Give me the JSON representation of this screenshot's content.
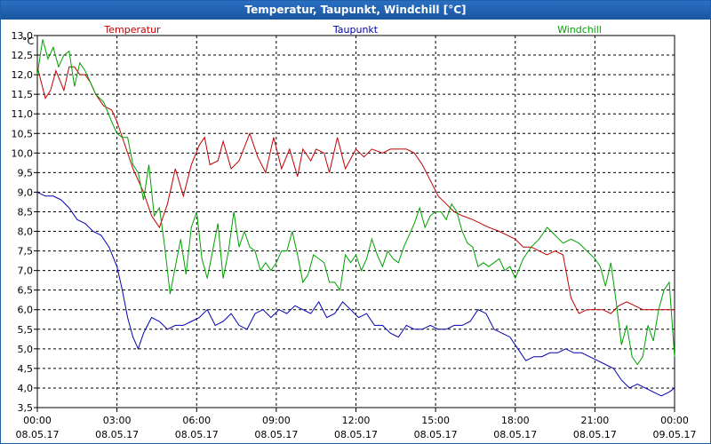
{
  "window": {
    "title": "Temperatur, Taupunkt, Windchill [°C]"
  },
  "chart_data": {
    "type": "line",
    "title": "Temperatur, Taupunkt, Windchill [°C]",
    "ylabel": "°C",
    "ylim": [
      3.5,
      13.0
    ],
    "yticks": [
      "13,0",
      "12,5",
      "12,0",
      "11,5",
      "11,0",
      "10,5",
      "10,0",
      "9,5",
      "9,0",
      "8,5",
      "8,0",
      "7,5",
      "7,0",
      "6,5",
      "6,0",
      "5,5",
      "5,0",
      "4,5",
      "4,0",
      "3,5"
    ],
    "xlim": [
      0,
      24
    ],
    "xticks": [
      {
        "time": "00:00",
        "date": "08.05.17"
      },
      {
        "time": "03:00",
        "date": "08.05.17"
      },
      {
        "time": "06:00",
        "date": "08.05.17"
      },
      {
        "time": "09:00",
        "date": "08.05.17"
      },
      {
        "time": "12:00",
        "date": "08.05.17"
      },
      {
        "time": "15:00",
        "date": "08.05.17"
      },
      {
        "time": "18:00",
        "date": "08.05.17"
      },
      {
        "time": "21:00",
        "date": "08.05.17"
      },
      {
        "time": "00:00",
        "date": "09.05.17"
      }
    ],
    "grid": true,
    "legend_position": "top",
    "series": [
      {
        "name": "Temperatur",
        "color": "#c00000",
        "x": [
          0,
          0.3,
          0.5,
          0.7,
          1.0,
          1.2,
          1.4,
          1.6,
          1.8,
          2.0,
          2.2,
          2.5,
          2.8,
          3.0,
          3.3,
          3.6,
          4.0,
          4.3,
          4.6,
          4.9,
          5.2,
          5.5,
          5.8,
          6.1,
          6.3,
          6.5,
          6.8,
          7.0,
          7.3,
          7.6,
          8.0,
          8.3,
          8.6,
          8.9,
          9.2,
          9.5,
          9.8,
          10.0,
          10.3,
          10.5,
          10.8,
          11.0,
          11.3,
          11.6,
          12.0,
          12.3,
          12.6,
          13.0,
          13.3,
          13.6,
          13.9,
          14.2,
          14.5,
          14.8,
          15.1,
          15.4,
          15.7,
          16.0,
          16.4,
          16.7,
          17.0,
          17.4,
          17.7,
          18.0,
          18.3,
          18.6,
          18.9,
          19.2,
          19.5,
          19.8,
          20.1,
          20.4,
          20.7,
          21.0,
          21.3,
          21.6,
          21.9,
          22.2,
          22.5,
          22.8,
          23.1,
          23.4,
          23.7,
          24.0
        ],
        "values": [
          12.2,
          11.4,
          11.6,
          12.1,
          11.6,
          12.2,
          12.2,
          12.0,
          12.0,
          11.8,
          11.5,
          11.2,
          11.1,
          10.8,
          10.2,
          9.6,
          9.0,
          8.4,
          8.1,
          8.7,
          9.6,
          8.9,
          9.7,
          10.2,
          10.4,
          9.7,
          9.8,
          10.3,
          9.6,
          9.8,
          10.5,
          9.9,
          9.5,
          10.4,
          9.6,
          10.1,
          9.4,
          10.1,
          9.8,
          10.1,
          10.0,
          9.5,
          10.4,
          9.6,
          10.1,
          9.9,
          10.1,
          10.0,
          10.1,
          10.1,
          10.1,
          10.0,
          9.7,
          9.3,
          8.9,
          8.7,
          8.5,
          8.4,
          8.3,
          8.2,
          8.1,
          8.0,
          7.9,
          7.8,
          7.6,
          7.6,
          7.5,
          7.4,
          7.5,
          7.4,
          6.3,
          5.9,
          6.0,
          6.0,
          6.0,
          5.9,
          6.1,
          6.2,
          6.1,
          6.0,
          6.0,
          6.0,
          6.0,
          6.0
        ]
      },
      {
        "name": "Taupunkt",
        "color": "#0000b0",
        "x": [
          0,
          0.3,
          0.6,
          0.9,
          1.2,
          1.5,
          1.8,
          2.1,
          2.4,
          2.7,
          3.0,
          3.2,
          3.4,
          3.6,
          3.8,
          4.0,
          4.3,
          4.6,
          4.9,
          5.2,
          5.5,
          5.8,
          6.1,
          6.4,
          6.7,
          7.0,
          7.3,
          7.6,
          7.9,
          8.2,
          8.5,
          8.8,
          9.1,
          9.4,
          9.7,
          10.0,
          10.3,
          10.6,
          10.9,
          11.2,
          11.5,
          11.8,
          12.1,
          12.4,
          12.7,
          13.0,
          13.3,
          13.6,
          13.9,
          14.2,
          14.5,
          14.8,
          15.1,
          15.4,
          15.7,
          16.0,
          16.3,
          16.6,
          16.9,
          17.2,
          17.5,
          17.8,
          18.1,
          18.4,
          18.7,
          19.0,
          19.3,
          19.6,
          19.9,
          20.2,
          20.5,
          20.8,
          21.1,
          21.4,
          21.7,
          22.0,
          22.3,
          22.6,
          22.9,
          23.2,
          23.5,
          23.8,
          24.0
        ],
        "values": [
          9.0,
          8.9,
          8.9,
          8.8,
          8.6,
          8.3,
          8.2,
          8.0,
          7.9,
          7.6,
          7.1,
          6.5,
          5.8,
          5.3,
          5.0,
          5.4,
          5.8,
          5.7,
          5.5,
          5.6,
          5.6,
          5.7,
          5.8,
          6.0,
          5.6,
          5.7,
          5.9,
          5.6,
          5.5,
          5.9,
          6.0,
          5.8,
          6.0,
          5.9,
          6.1,
          6.0,
          5.9,
          6.2,
          5.8,
          5.9,
          6.2,
          6.0,
          5.8,
          5.9,
          5.6,
          5.6,
          5.4,
          5.3,
          5.6,
          5.5,
          5.5,
          5.6,
          5.5,
          5.5,
          5.6,
          5.6,
          5.7,
          6.0,
          5.9,
          5.5,
          5.4,
          5.3,
          5.0,
          4.7,
          4.8,
          4.8,
          4.9,
          4.9,
          5.0,
          4.9,
          4.9,
          4.8,
          4.7,
          4.6,
          4.5,
          4.2,
          4.0,
          4.1,
          4.0,
          3.9,
          3.8,
          3.9,
          4.0
        ]
      },
      {
        "name": "Windchill",
        "color": "#00a000",
        "x": [
          0,
          0.2,
          0.4,
          0.6,
          0.8,
          1.0,
          1.2,
          1.4,
          1.6,
          1.8,
          2.0,
          2.2,
          2.5,
          2.8,
          3.0,
          3.2,
          3.4,
          3.6,
          3.8,
          4.0,
          4.2,
          4.4,
          4.6,
          4.8,
          5.0,
          5.2,
          5.4,
          5.6,
          5.8,
          6.0,
          6.2,
          6.4,
          6.6,
          6.8,
          7.0,
          7.2,
          7.4,
          7.6,
          7.8,
          8.0,
          8.2,
          8.4,
          8.6,
          8.8,
          9.0,
          9.2,
          9.4,
          9.6,
          9.8,
          10.0,
          10.2,
          10.4,
          10.6,
          10.8,
          11.0,
          11.2,
          11.4,
          11.6,
          11.8,
          12.0,
          12.2,
          12.4,
          12.6,
          12.8,
          13.0,
          13.2,
          13.4,
          13.6,
          13.8,
          14.0,
          14.2,
          14.4,
          14.6,
          14.8,
          15.0,
          15.2,
          15.4,
          15.6,
          15.8,
          16.0,
          16.2,
          16.4,
          16.6,
          16.8,
          17.0,
          17.2,
          17.4,
          17.6,
          17.8,
          18.0,
          18.3,
          18.6,
          18.9,
          19.2,
          19.5,
          19.8,
          20.1,
          20.4,
          20.7,
          21.0,
          21.2,
          21.4,
          21.6,
          21.8,
          22.0,
          22.2,
          22.4,
          22.6,
          22.8,
          23.0,
          23.2,
          23.4,
          23.6,
          23.8,
          24.0
        ],
        "values": [
          12.0,
          12.9,
          12.4,
          12.7,
          12.2,
          12.5,
          12.6,
          11.7,
          12.3,
          12.1,
          11.8,
          11.5,
          11.3,
          10.8,
          10.5,
          10.4,
          10.4,
          9.7,
          9.5,
          8.8,
          9.7,
          8.4,
          8.6,
          7.6,
          6.4,
          7.1,
          7.8,
          6.9,
          8.1,
          8.5,
          7.3,
          6.8,
          7.5,
          8.2,
          6.8,
          7.5,
          8.5,
          7.6,
          8.0,
          7.6,
          7.5,
          7.0,
          7.2,
          7.0,
          7.2,
          7.5,
          7.5,
          8.0,
          7.4,
          6.7,
          6.9,
          7.4,
          7.3,
          7.2,
          6.7,
          6.7,
          6.5,
          7.4,
          7.2,
          7.4,
          7.0,
          7.3,
          7.8,
          7.4,
          7.1,
          7.5,
          7.3,
          7.2,
          7.6,
          7.9,
          8.2,
          8.6,
          8.1,
          8.4,
          8.5,
          8.5,
          8.3,
          8.7,
          8.5,
          8.0,
          7.7,
          7.6,
          7.1,
          7.2,
          7.1,
          7.2,
          7.3,
          7.0,
          7.1,
          6.8,
          7.3,
          7.6,
          7.8,
          8.1,
          7.9,
          7.7,
          7.8,
          7.7,
          7.5,
          7.3,
          7.1,
          6.6,
          7.2,
          6.2,
          5.1,
          5.6,
          4.8,
          4.6,
          4.8,
          5.6,
          5.2,
          6.0,
          6.5,
          6.7,
          4.8
        ]
      }
    ]
  }
}
